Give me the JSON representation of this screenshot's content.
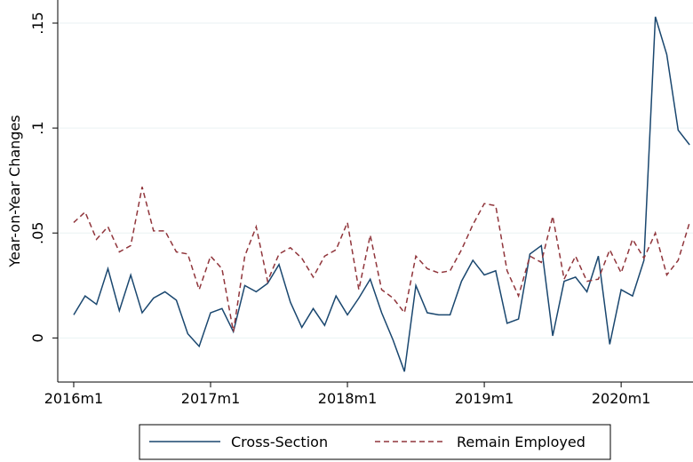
{
  "chart_data": {
    "type": "line",
    "y_label": "Year-on-Year Changes",
    "x": [
      0,
      1,
      2,
      3,
      4,
      5,
      6,
      7,
      8,
      9,
      10,
      11,
      12,
      13,
      14,
      15,
      16,
      17,
      18,
      19,
      20,
      21,
      22,
      23,
      24,
      25,
      26,
      27,
      28,
      29,
      30,
      31,
      32,
      33,
      34,
      35,
      36,
      37,
      38,
      39,
      40,
      41,
      42,
      43,
      44,
      45,
      46,
      47,
      48,
      49,
      50,
      51,
      52,
      53,
      54
    ],
    "xlim": [
      -1.4,
      54.3
    ],
    "xticks": [
      {
        "value": 0,
        "label": "2016m1"
      },
      {
        "value": 12,
        "label": "2017m1"
      },
      {
        "value": 24,
        "label": "2018m1"
      },
      {
        "value": 36,
        "label": "2019m1"
      },
      {
        "value": 48,
        "label": "2020m1"
      }
    ],
    "ylim": [
      -0.021,
      0.161
    ],
    "yticks": [
      0,
      {
        "value": 0.05,
        "label": ".05"
      },
      {
        "value": 0.1,
        "label": ".1"
      },
      {
        "value": 0.15,
        "label": ".15"
      }
    ],
    "grid": true,
    "series": [
      {
        "name": "Cross-Section",
        "color": "#1a476f",
        "dash": "solid",
        "values": [
          0.011,
          0.02,
          0.016,
          0.033,
          0.013,
          0.03,
          0.012,
          0.019,
          0.022,
          0.018,
          0.002,
          -0.004,
          0.012,
          0.014,
          0.003,
          0.025,
          0.022,
          0.026,
          0.035,
          0.017,
          0.005,
          0.014,
          0.006,
          0.02,
          0.011,
          0.019,
          0.028,
          0.012,
          -0.001,
          -0.016,
          0.025,
          0.012,
          0.011,
          0.011,
          0.027,
          0.037,
          0.03,
          0.032,
          0.007,
          0.009,
          0.04,
          0.044,
          0.001,
          0.027,
          0.029,
          0.022,
          0.039,
          -0.003,
          0.023,
          0.02,
          0.037,
          0.153,
          0.135,
          0.099,
          0.092
        ]
      },
      {
        "name": "Remain Employed",
        "color": "#90353b",
        "dash": "dashed",
        "values": [
          0.055,
          0.06,
          0.047,
          0.053,
          0.041,
          0.044,
          0.072,
          0.051,
          0.051,
          0.041,
          0.04,
          0.023,
          0.039,
          0.033,
          0.003,
          0.039,
          0.053,
          0.027,
          0.04,
          0.043,
          0.038,
          0.029,
          0.039,
          0.042,
          0.055,
          0.023,
          0.049,
          0.023,
          0.019,
          0.012,
          0.039,
          0.033,
          0.031,
          0.032,
          0.042,
          0.054,
          0.064,
          0.063,
          0.032,
          0.02,
          0.039,
          0.036,
          0.058,
          0.028,
          0.039,
          0.027,
          0.028,
          0.042,
          0.031,
          0.047,
          0.038,
          0.05,
          0.03,
          0.037,
          0.055
        ]
      }
    ]
  }
}
